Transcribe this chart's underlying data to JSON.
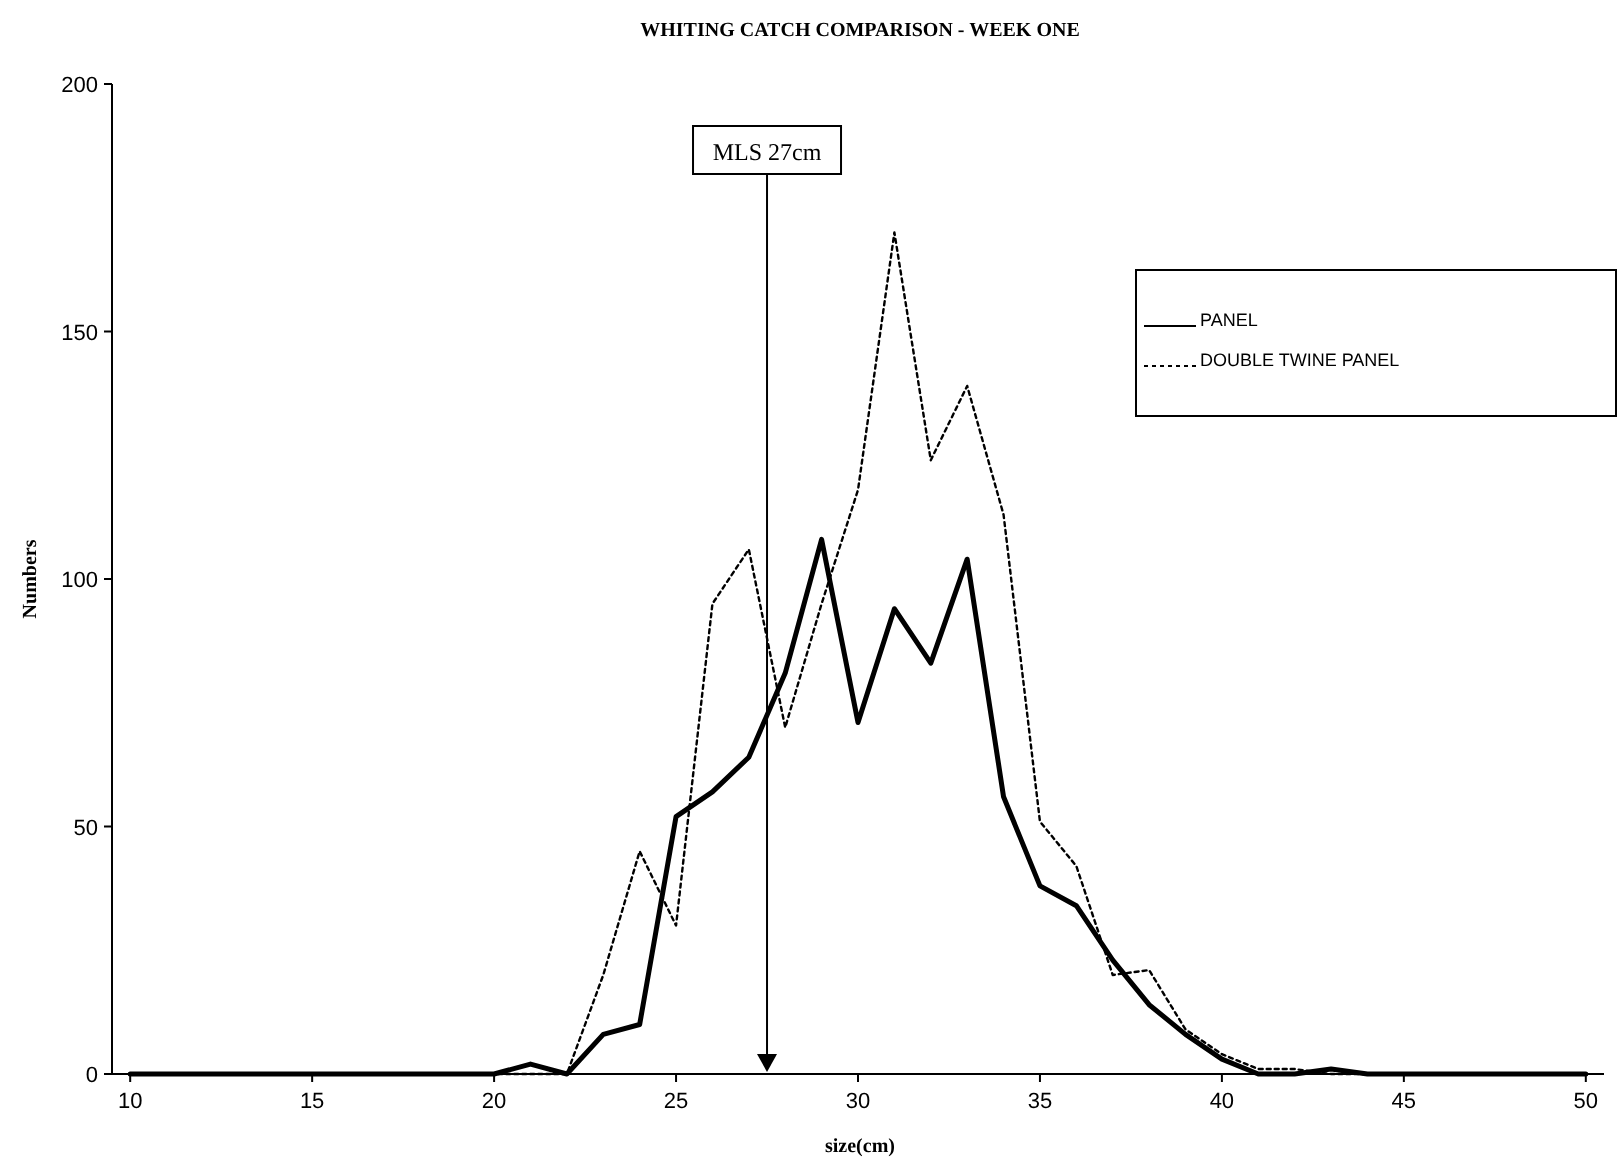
{
  "chart_data": {
    "type": "line",
    "title": "WHITING CATCH COMPARISON - WEEK ONE",
    "xlabel": "size(cm)",
    "ylabel": "Numbers",
    "x": [
      10,
      11,
      12,
      13,
      14,
      15,
      16,
      17,
      18,
      19,
      20,
      21,
      22,
      23,
      24,
      25,
      26,
      27,
      28,
      29,
      30,
      31,
      32,
      33,
      34,
      35,
      36,
      37,
      38,
      39,
      40,
      41,
      42,
      43,
      44,
      45,
      46,
      47,
      48,
      49,
      50
    ],
    "series": [
      {
        "name": "PANEL",
        "color": "#000000",
        "line_style": "solid",
        "values": [
          0,
          0,
          0,
          0,
          0,
          0,
          0,
          0,
          0,
          0,
          0,
          2,
          0,
          8,
          10,
          52,
          57,
          64,
          81,
          108,
          71,
          94,
          83,
          104,
          56,
          38,
          34,
          23,
          14,
          8,
          3,
          0,
          0,
          1,
          0,
          0,
          0,
          0,
          0,
          0,
          0
        ]
      },
      {
        "name": "DOUBLE TWINE PANEL",
        "color": "#000000",
        "line_style": "dotted",
        "values": [
          0,
          0,
          0,
          0,
          0,
          0,
          0,
          0,
          0,
          0,
          0,
          0,
          0,
          20,
          45,
          30,
          95,
          106,
          70,
          95,
          118,
          170,
          124,
          139,
          113,
          51,
          42,
          20,
          21,
          9,
          4,
          1,
          1,
          0,
          0,
          0,
          0,
          0,
          0,
          0,
          0
        ]
      }
    ],
    "xlim": [
      9.5,
      50.5
    ],
    "xticks": [
      10,
      15,
      20,
      25,
      30,
      35,
      40,
      45,
      50
    ],
    "ylim": [
      0,
      200
    ],
    "yticks": [
      0,
      50,
      100,
      150,
      200
    ],
    "ref_lines": [
      {
        "axis": "x",
        "value": 27.5,
        "label": "MLS 27cm"
      }
    ],
    "grid": false,
    "legend": "right",
    "marker": "none"
  }
}
